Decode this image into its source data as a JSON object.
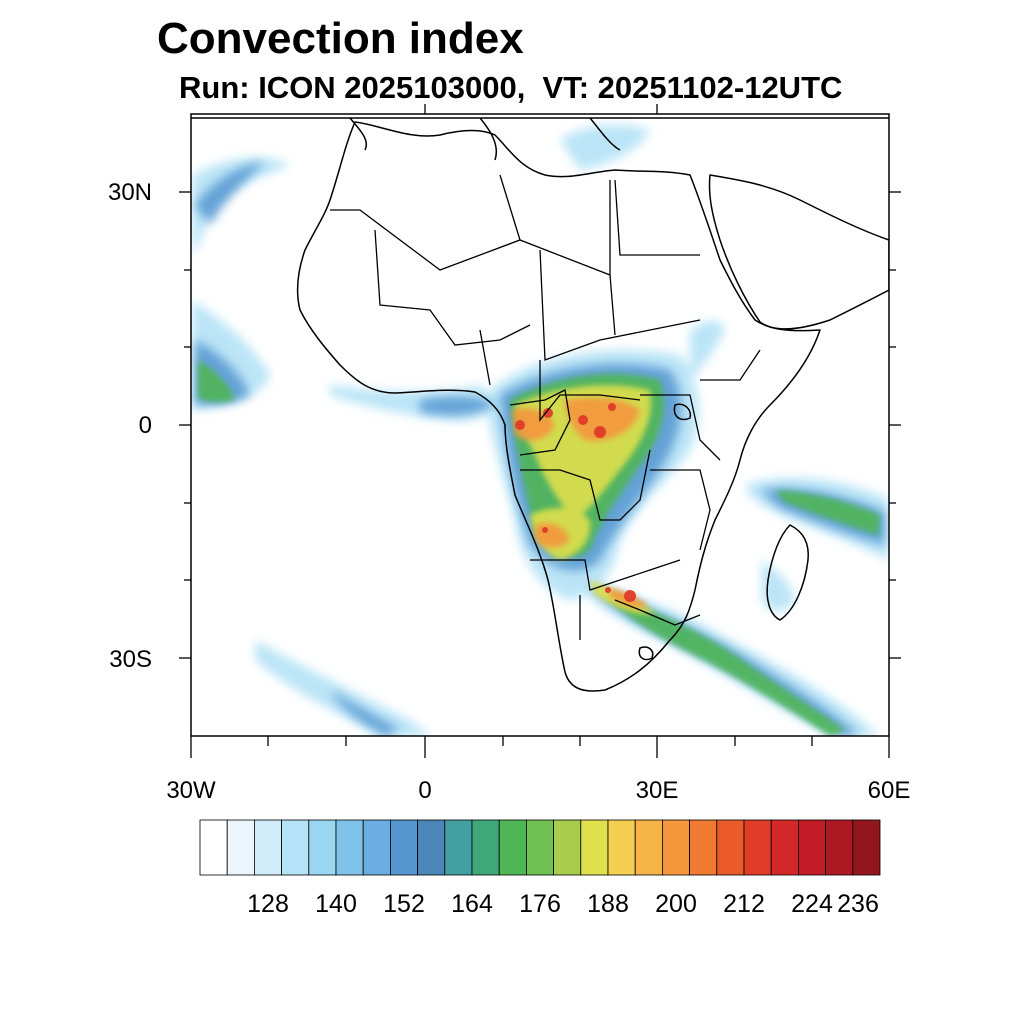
{
  "title": "Convection index",
  "subtitle": "Run: ICON 2025103000,  VT: 20251102-12UTC",
  "axes": {
    "lat_labels": [
      "30N",
      "0",
      "30S"
    ],
    "lon_labels": [
      "30W",
      "0",
      "30E",
      "60E"
    ]
  },
  "colorbar": {
    "labels": [
      "128",
      "140",
      "152",
      "164",
      "176",
      "188",
      "200",
      "212",
      "224",
      "236"
    ],
    "colors": [
      "#ffffff",
      "#eaf6fc",
      "#cfecf8",
      "#b4e2f6",
      "#98d6f2",
      "#7fc3ea",
      "#6aaee2",
      "#5596d0",
      "#4a86b8",
      "#43a0a0",
      "#40a878",
      "#4fb656",
      "#71c054",
      "#a8cc4c",
      "#dfe04c",
      "#f5cf52",
      "#f6b447",
      "#f5963c",
      "#f07a32",
      "#ea5a2a",
      "#e03c28",
      "#d42828",
      "#c21d26",
      "#ac1922",
      "#93161c"
    ]
  },
  "map_colors": {
    "light": "#b4e2f6",
    "blue": "#5596d0",
    "teal": "#43a0a0",
    "green": "#4fb656",
    "yellow": "#dfe04c",
    "orange": "#f5963c",
    "red": "#e03c28"
  }
}
